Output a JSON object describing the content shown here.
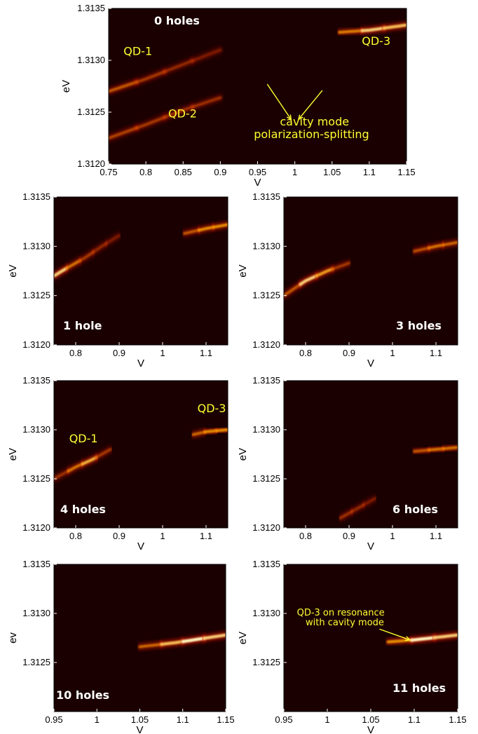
{
  "colors": {
    "plot_bg": "#1a0000",
    "trace_glow": "#cc1a00",
    "trace_core": "#ffb000",
    "trace_hot": "#fff7c0",
    "hole_label": "#ffffff",
    "annotation": "#ffff33"
  },
  "chart_data": [
    {
      "type": "heatmap",
      "xlabel": "V",
      "ylabel": "eV",
      "xlim": [
        0.75,
        1.15
      ],
      "ylim": [
        1.312,
        1.3135
      ],
      "xticks": [
        "0.75",
        "0.8",
        "0.85",
        "0.9",
        "0.95",
        "1",
        "1.05",
        "1.1",
        "1.15"
      ],
      "xtick_values": [
        0.75,
        0.8,
        0.85,
        0.9,
        0.95,
        1,
        1.05,
        1.1,
        1.15
      ],
      "yticks": [
        "1.3120",
        "1.3125",
        "1.3130",
        "1.3135"
      ],
      "ytick_values": [
        1.312,
        1.3125,
        1.313,
        1.3135
      ],
      "label": "0 holes",
      "annotations": [
        {
          "text": "QD-1",
          "x": 0.77,
          "y": 1.31305
        },
        {
          "text": "QD-2",
          "x": 0.83,
          "y": 1.31245
        },
        {
          "text": "QD-3",
          "x": 1.09,
          "y": 1.31315
        },
        {
          "text": "cavity mode",
          "x": 0.98,
          "y": 1.31237
        },
        {
          "text": "polarization-splitting",
          "x": 0.945,
          "y": 1.31225
        }
      ],
      "arrows": [
        {
          "from": [
            0.963,
            1.31277
          ],
          "to": [
            0.995,
            1.31243
          ]
        },
        {
          "from": [
            1.037,
            1.31271
          ],
          "to": [
            1.005,
            1.31243
          ]
        }
      ],
      "traces": [
        {
          "name": "cavity-mode-upper",
          "points": [
            [
              0.75,
              1.31277
            ],
            [
              1.15,
              1.31277
            ]
          ],
          "weights": [
            0.6,
            0.85,
            0.75,
            1.0,
            1.0,
            0.85
          ]
        },
        {
          "name": "cavity-mode-lower",
          "points": [
            [
              0.75,
              1.31265
            ],
            [
              1.15,
              1.31265
            ]
          ],
          "weights": [
            0.45,
            0.6,
            0.7,
            0.95,
            0.8,
            0.75
          ]
        },
        {
          "name": "top-band",
          "points": [
            [
              0.75,
              1.31345
            ],
            [
              1.15,
              1.31345
            ]
          ],
          "weights": [
            0.35,
            0.4,
            0.45,
            0.5,
            0.55,
            0.55
          ]
        },
        {
          "name": "qd-1",
          "points": [
            [
              0.75,
              1.3127
            ],
            [
              0.8,
              1.31282
            ],
            [
              0.85,
              1.31296
            ],
            [
              0.9,
              1.3131
            ]
          ],
          "weights": [
            0.5,
            0.35,
            0.25,
            0.15
          ]
        },
        {
          "name": "qd-2",
          "points": [
            [
              0.75,
              1.31225
            ],
            [
              0.8,
              1.31238
            ],
            [
              0.85,
              1.31252
            ],
            [
              0.9,
              1.31264
            ]
          ],
          "weights": [
            0.4,
            0.35,
            0.3,
            0.3
          ]
        },
        {
          "name": "qd-3",
          "points": [
            [
              1.06,
              1.31327
            ],
            [
              1.1,
              1.31329
            ],
            [
              1.15,
              1.31334
            ]
          ],
          "weights": [
            0.65,
            0.9,
            0.85
          ]
        }
      ]
    },
    {
      "type": "heatmap",
      "xlabel": "V",
      "ylabel": "eV",
      "xlim": [
        0.75,
        1.15
      ],
      "ylim": [
        1.312,
        1.3135
      ],
      "xticks": [
        "0.8",
        "0.9",
        "1",
        "1.1"
      ],
      "xtick_values": [
        0.8,
        0.9,
        1.0,
        1.1
      ],
      "yticks": [
        "1.3120",
        "1.3125",
        "1.3130",
        "1.3135"
      ],
      "ytick_values": [
        1.312,
        1.3125,
        1.313,
        1.3135
      ],
      "label": "1 hole",
      "traces": [
        {
          "name": "cavity-mode",
          "points": [
            [
              0.75,
              1.31274
            ],
            [
              1.15,
              1.31274
            ]
          ],
          "weights": [
            0.35,
            0.5,
            0.6,
            0.9,
            0.85,
            0.7
          ]
        },
        {
          "name": "qd-1",
          "points": [
            [
              0.75,
              1.3127
            ],
            [
              0.78,
              1.31278
            ],
            [
              0.82,
              1.31288
            ],
            [
              0.86,
              1.313
            ],
            [
              0.9,
              1.31311
            ]
          ],
          "weights": [
            0.9,
            0.6,
            0.35,
            0.25,
            0.15
          ]
        },
        {
          "name": "qd-3",
          "points": [
            [
              1.05,
              1.31313
            ],
            [
              1.1,
              1.31318
            ],
            [
              1.15,
              1.31322
            ]
          ],
          "weights": [
            0.5,
            0.7,
            0.7
          ]
        },
        {
          "name": "top-band",
          "points": [
            [
              0.75,
              1.31343
            ],
            [
              1.15,
              1.31343
            ]
          ],
          "weights": [
            0.2,
            0.25,
            0.3,
            0.3,
            0.35,
            0.35
          ]
        }
      ]
    },
    {
      "type": "heatmap",
      "xlabel": "V",
      "ylabel": "eV",
      "xlim": [
        0.75,
        1.15
      ],
      "ylim": [
        1.312,
        1.3135
      ],
      "xticks": [
        "0.8",
        "0.9",
        "1",
        "1.1"
      ],
      "xtick_values": [
        0.8,
        0.9,
        1.0,
        1.1
      ],
      "yticks": [
        "1.3120",
        "1.3125",
        "1.3130",
        "1.3135"
      ],
      "ytick_values": [
        1.312,
        1.3125,
        1.313,
        1.3135
      ],
      "label": "3 holes",
      "traces": [
        {
          "name": "cavity-mode",
          "points": [
            [
              0.75,
              1.31273
            ],
            [
              1.15,
              1.31273
            ]
          ],
          "weights": [
            0.25,
            0.3,
            0.35,
            0.6,
            0.75,
            0.5
          ]
        },
        {
          "name": "qd-1",
          "points": [
            [
              0.75,
              1.3125
            ],
            [
              0.8,
              1.31265
            ],
            [
              0.85,
              1.31275
            ],
            [
              0.9,
              1.31283
            ]
          ],
          "weights": [
            0.5,
            0.9,
            0.75,
            0.35
          ]
        },
        {
          "name": "qd-3",
          "points": [
            [
              1.05,
              1.31295
            ],
            [
              1.1,
              1.313
            ],
            [
              1.15,
              1.31304
            ]
          ],
          "weights": [
            0.45,
            0.6,
            0.55
          ]
        }
      ]
    },
    {
      "type": "heatmap",
      "xlabel": "V",
      "ylabel": "eV",
      "xlim": [
        0.75,
        1.15
      ],
      "ylim": [
        1.312,
        1.3135
      ],
      "xticks": [
        "0.8",
        "0.9",
        "1",
        "1.1"
      ],
      "xtick_values": [
        0.8,
        0.9,
        1.0,
        1.1
      ],
      "yticks": [
        "1.3120",
        "1.3125",
        "1.3130",
        "1.3135"
      ],
      "ytick_values": [
        1.312,
        1.3125,
        1.313,
        1.3135
      ],
      "label": "4 holes",
      "annotations": [
        {
          "text": "QD-1",
          "x": 0.785,
          "y": 1.31287
        },
        {
          "text": "QD-3",
          "x": 1.08,
          "y": 1.31318
        }
      ],
      "traces": [
        {
          "name": "cavity-mode",
          "points": [
            [
              0.75,
              1.31268
            ],
            [
              1.15,
              1.31268
            ]
          ],
          "weights": [
            0.4,
            0.45,
            0.5,
            1.0,
            0.75,
            0.6
          ]
        },
        {
          "name": "qd-1",
          "points": [
            [
              0.75,
              1.3125
            ],
            [
              0.8,
              1.31262
            ],
            [
              0.84,
              1.3127
            ],
            [
              0.88,
              1.3128
            ]
          ],
          "weights": [
            0.3,
            0.6,
            0.8,
            0.35
          ]
        },
        {
          "name": "qd-3",
          "points": [
            [
              1.07,
              1.31295
            ],
            [
              1.1,
              1.31298
            ],
            [
              1.15,
              1.313
            ]
          ],
          "weights": [
            0.55,
            0.7,
            0.7
          ]
        },
        {
          "name": "top-band",
          "points": [
            [
              0.75,
              1.31343
            ],
            [
              1.15,
              1.31343
            ]
          ],
          "weights": [
            0.15,
            0.2,
            0.2,
            0.25,
            0.25,
            0.25
          ]
        }
      ]
    },
    {
      "type": "heatmap",
      "xlabel": "V",
      "ylabel": "eV",
      "xlim": [
        0.75,
        1.15
      ],
      "ylim": [
        1.312,
        1.3135
      ],
      "xticks": [
        "0.8",
        "0.9",
        "1",
        "1.1"
      ],
      "xtick_values": [
        0.8,
        0.9,
        1.0,
        1.1
      ],
      "yticks": [
        "1.3120",
        "1.3125",
        "1.3130",
        "1.3135"
      ],
      "ytick_values": [
        1.312,
        1.3125,
        1.313,
        1.3135
      ],
      "label": "6 holes",
      "traces": [
        {
          "name": "cavity-mode",
          "points": [
            [
              0.75,
              1.3127
            ],
            [
              1.15,
              1.3127
            ]
          ],
          "weights": [
            0.8,
            0.85,
            0.9,
            0.95,
            1.0,
            1.0
          ]
        },
        {
          "name": "top-band",
          "points": [
            [
              0.75,
              1.31343
            ],
            [
              1.15,
              1.31343
            ]
          ],
          "weights": [
            0.45,
            0.5,
            0.55,
            0.75,
            0.7,
            0.5
          ]
        },
        {
          "name": "qd-3",
          "points": [
            [
              1.05,
              1.31278
            ],
            [
              1.1,
              1.3128
            ],
            [
              1.15,
              1.31282
            ]
          ],
          "weights": [
            0.5,
            0.6,
            0.6
          ]
        },
        {
          "name": "qd-1",
          "points": [
            [
              0.88,
              1.3121
            ],
            [
              0.92,
              1.3122
            ],
            [
              0.96,
              1.3123
            ]
          ],
          "weights": [
            0.3,
            0.25,
            0.15
          ]
        }
      ]
    },
    {
      "type": "heatmap",
      "xlabel": "V",
      "ylabel": "ev",
      "xlim": [
        0.95,
        1.15
      ],
      "ylim": [
        1.312,
        1.3135
      ],
      "xticks": [
        "0.95",
        "1",
        "1.05",
        "1.1",
        "1.15"
      ],
      "xtick_values": [
        0.95,
        1.0,
        1.05,
        1.1,
        1.15
      ],
      "yticks": [
        "1.3125",
        "1.3130",
        "1.3135"
      ],
      "ytick_values": [
        1.3125,
        1.313,
        1.3135
      ],
      "label": "10 holes",
      "traces": [
        {
          "name": "cavity-mode",
          "points": [
            [
              0.95,
              1.31265
            ],
            [
              1.15,
              1.31265
            ]
          ],
          "weights": [
            0.8,
            0.85,
            0.9,
            0.95,
            0.95,
            0.9
          ]
        },
        {
          "name": "top-band",
          "points": [
            [
              0.95,
              1.31342
            ],
            [
              1.15,
              1.31342
            ]
          ],
          "weights": [
            0.45,
            0.5,
            0.5,
            0.55,
            0.55,
            0.5
          ]
        },
        {
          "name": "qd-3",
          "points": [
            [
              1.05,
              1.31266
            ],
            [
              1.09,
              1.3127
            ],
            [
              1.12,
              1.31274
            ],
            [
              1.15,
              1.31278
            ]
          ],
          "weights": [
            0.55,
            0.85,
            1.0,
            0.9
          ]
        }
      ]
    },
    {
      "type": "heatmap",
      "xlabel": "V",
      "ylabel": "eV",
      "xlim": [
        0.95,
        1.15
      ],
      "ylim": [
        1.312,
        1.3135
      ],
      "xticks": [
        "0.95",
        "1",
        "1.05",
        "1.1",
        "1.15"
      ],
      "xtick_values": [
        0.95,
        1.0,
        1.05,
        1.1,
        1.15
      ],
      "yticks": [
        "1.3125",
        "1.3130",
        "1.3135"
      ],
      "ytick_values": [
        1.3125,
        1.313,
        1.3135
      ],
      "label": "11 holes",
      "annotations": [
        {
          "text": "QD-3 on resonance",
          "x": 0.965,
          "y": 1.31298
        },
        {
          "text": "with cavity mode",
          "x": 0.975,
          "y": 1.31288
        }
      ],
      "arrows": [
        {
          "from": [
            1.06,
            1.31284
          ],
          "to": [
            1.095,
            1.31273
          ]
        }
      ],
      "traces": [
        {
          "name": "cavity-mode",
          "points": [
            [
              0.95,
              1.3127
            ],
            [
              1.15,
              1.3127
            ]
          ],
          "weights": [
            0.35,
            0.4,
            0.45,
            0.5,
            0.55,
            0.5
          ]
        },
        {
          "name": "qd-3",
          "points": [
            [
              1.07,
              1.31271
            ],
            [
              1.1,
              1.31273
            ],
            [
              1.15,
              1.31278
            ]
          ],
          "weights": [
            0.7,
            1.0,
            0.9
          ]
        },
        {
          "name": "top-band",
          "points": [
            [
              0.95,
              1.31342
            ],
            [
              1.15,
              1.31342
            ]
          ],
          "weights": [
            0.2,
            0.2,
            0.25,
            0.3,
            0.25,
            0.2
          ]
        }
      ]
    }
  ]
}
